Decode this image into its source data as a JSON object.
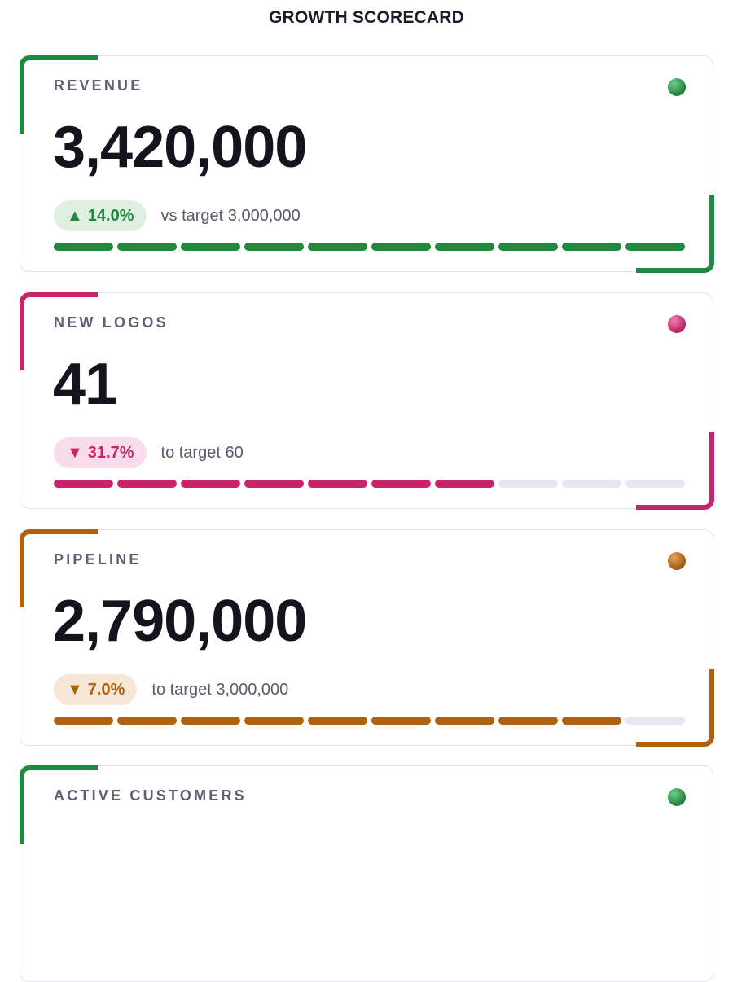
{
  "title": "GROWTH SCORECARD",
  "cards": [
    {
      "label": "REVENUE",
      "value": "3,420,000",
      "delta_arrow": "▲",
      "delta": "14.0%",
      "note": "vs target 3,000,000",
      "color": "#1e8a3e",
      "pill_bg": "#dff0e3",
      "dot_colors": [
        "#6fcf8b",
        "#1e7a36"
      ],
      "progress_fraction": 1.0,
      "progress_segments_total": 10
    },
    {
      "label": "NEW LOGOS",
      "value": "41",
      "delta_arrow": "▼",
      "delta": "31.7%",
      "note": "to target 60",
      "color": "#c8236b",
      "pill_bg": "#f9dcea",
      "dot_colors": [
        "#f07fb1",
        "#b31a5c"
      ],
      "progress_fraction": 0.683,
      "progress_segments_total": 10
    },
    {
      "label": "PIPELINE",
      "value": "2,790,000",
      "delta_arrow": "▼",
      "delta": "7.0%",
      "note": "to target 3,000,000",
      "color": "#b1600c",
      "pill_bg": "#f5e6d6",
      "dot_colors": [
        "#e4a55a",
        "#9a520a"
      ],
      "progress_fraction": 0.93,
      "progress_segments_total": 10
    },
    {
      "label": "ACTIVE CUSTOMERS",
      "color": "#1e8a3e",
      "dot_colors": [
        "#6fcf8b",
        "#1e7a36"
      ]
    }
  ]
}
